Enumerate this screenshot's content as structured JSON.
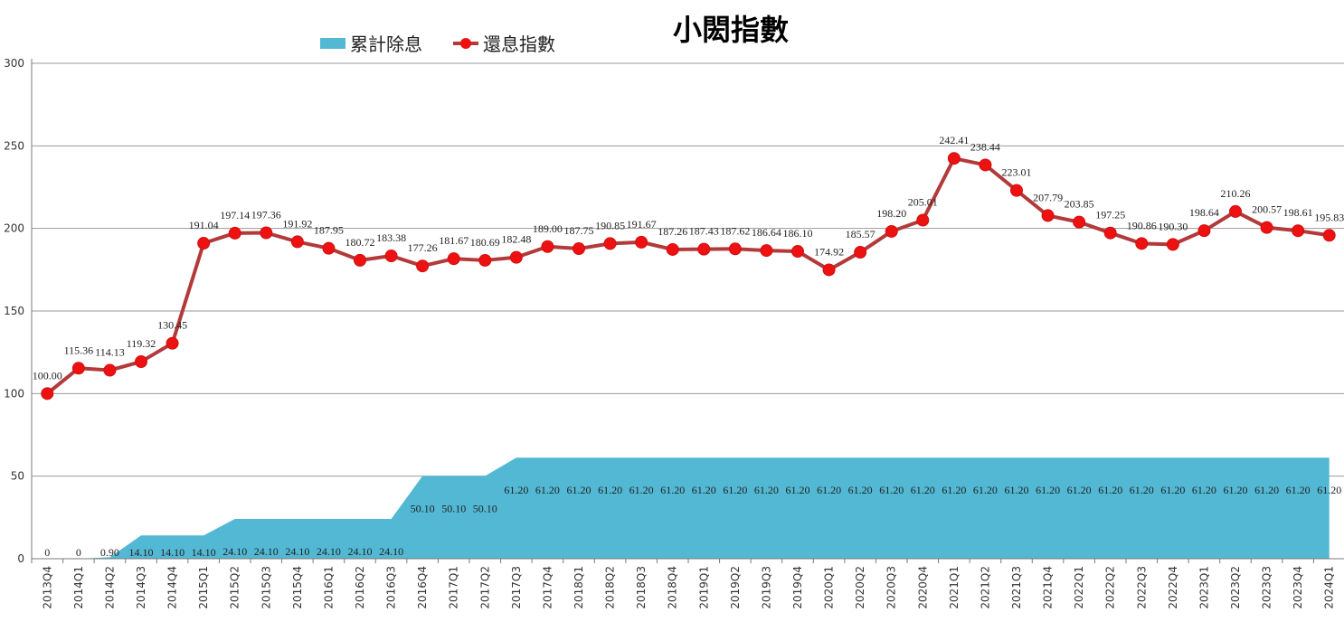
{
  "chart_data": {
    "type": "line",
    "title": "小閎指數",
    "xlabel": "",
    "ylabel": "",
    "ylim": [
      0,
      300
    ],
    "yticks": [
      0,
      50,
      100,
      150,
      200,
      250,
      300
    ],
    "grid": true,
    "legend_position": "top-left",
    "categories": [
      "2013Q4",
      "2014Q1",
      "2014Q2",
      "2014Q3",
      "2014Q4",
      "2015Q1",
      "2015Q2",
      "2015Q3",
      "2015Q4",
      "2016Q1",
      "2016Q2",
      "2016Q3",
      "2016Q4",
      "2017Q1",
      "2017Q2",
      "2017Q3",
      "2017Q4",
      "2018Q1",
      "2018Q2",
      "2018Q3",
      "2018Q4",
      "2019Q1",
      "2019Q2",
      "2019Q3",
      "2019Q4",
      "2020Q1",
      "2020Q2",
      "2020Q3",
      "2020Q4",
      "2021Q1",
      "2021Q2",
      "2021Q3",
      "2021Q4",
      "2022Q1",
      "2022Q2",
      "2022Q3",
      "2022Q4",
      "2023Q1",
      "2023Q2",
      "2023Q3",
      "2023Q4",
      "2024Q1"
    ],
    "series": [
      {
        "name": "累計除息",
        "type": "area",
        "color": "#52b8d3",
        "values": [
          0,
          0,
          0.9,
          14.1,
          14.1,
          14.1,
          24.1,
          24.1,
          24.1,
          24.1,
          24.1,
          24.1,
          50.1,
          50.1,
          50.1,
          61.2,
          61.2,
          61.2,
          61.2,
          61.2,
          61.2,
          61.2,
          61.2,
          61.2,
          61.2,
          61.2,
          61.2,
          61.2,
          61.2,
          61.2,
          61.2,
          61.2,
          61.2,
          61.2,
          61.2,
          61.2,
          61.2,
          61.2,
          61.2,
          61.2,
          61.2,
          61.2
        ],
        "labels": [
          "0",
          "0",
          "0.90",
          "14.10",
          "14.10",
          "14.10",
          "24.10",
          "24.10",
          "24.10",
          "24.10",
          "24.10",
          "24.10",
          "50.10",
          "50.10",
          "50.10",
          "61.20",
          "61.20",
          "61.20",
          "61.20",
          "61.20",
          "61.20",
          "61.20",
          "61.20",
          "61.20",
          "61.20",
          "61.20",
          "61.20",
          "61.20",
          "61.20",
          "61.20",
          "61.20",
          "61.20",
          "61.20",
          "61.20",
          "61.20",
          "61.20",
          "61.20",
          "61.20",
          "61.20",
          "61.20",
          "61.20",
          "61.20"
        ]
      },
      {
        "name": "還息指數",
        "type": "line",
        "color": "#b23a3a",
        "marker_color": "#ee1111",
        "values": [
          100,
          115.36,
          114.13,
          119.32,
          130.45,
          191.04,
          197.14,
          197.36,
          191.92,
          187.95,
          180.72,
          183.38,
          177.26,
          181.67,
          180.69,
          182.48,
          189,
          187.75,
          190.85,
          191.67,
          187.26,
          187.43,
          187.62,
          186.64,
          186.1,
          174.92,
          185.57,
          198.2,
          205.01,
          242.41,
          238.44,
          223.01,
          207.79,
          203.85,
          197.25,
          190.86,
          190.3,
          198.64,
          210.26,
          200.57,
          198.61,
          195.83
        ],
        "labels": [
          "100.00",
          "115.36",
          "114.13",
          "119.32",
          "130.45",
          "191.04",
          "197.14",
          "197.36",
          "191.92",
          "187.95",
          "180.72",
          "183.38",
          "177.26",
          "181.67",
          "180.69",
          "182.48",
          "189.00",
          "187.75",
          "190.85",
          "191.67",
          "187.26",
          "187.43",
          "187.62",
          "186.64",
          "186.10",
          "174.92",
          "185.57",
          "198.20",
          "205.01",
          "242.41",
          "238.44",
          "223.01",
          "207.79",
          "203.85",
          "197.25",
          "190.86",
          "190.30",
          "198.64",
          "210.26",
          "200.57",
          "198.61",
          "195.83"
        ]
      }
    ]
  }
}
